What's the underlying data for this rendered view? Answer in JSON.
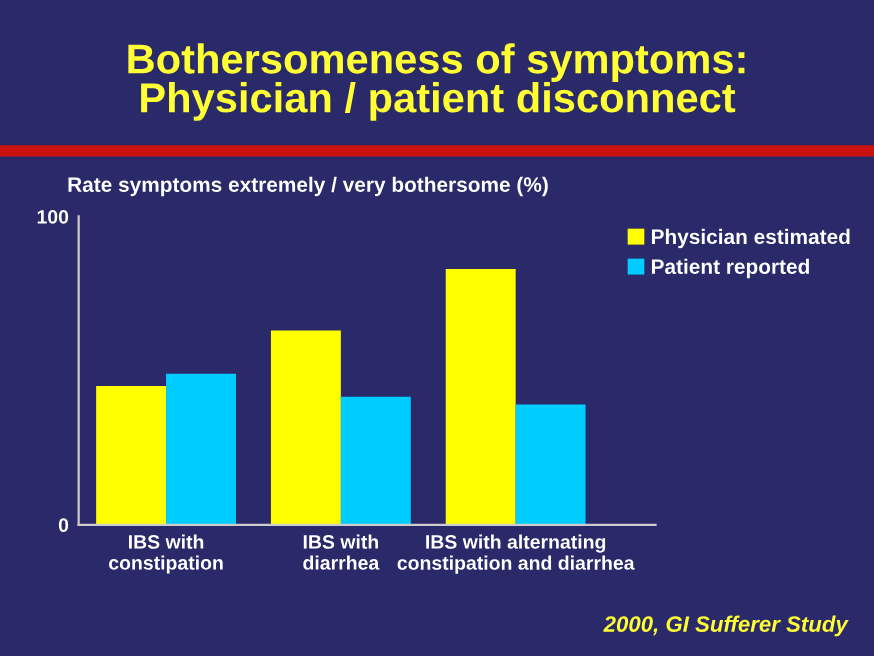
{
  "chart_data": {
    "type": "bar",
    "title": "Bothersomeness of symptoms:\nPhysician / patient disconnect",
    "ylabel": "Rate symptoms extremely / very bothersome (%)",
    "categories": [
      "IBS with\nconstipation",
      "IBS with\ndiarrhea",
      "IBS with alternating\nconstipation and diarrhea"
    ],
    "series": [
      {
        "name": "Physician estimated",
        "color": "#ffff00",
        "values": [
          45,
          63,
          83
        ]
      },
      {
        "name": "Patient reported",
        "color": "#00ccff",
        "values": [
          49,
          41.5,
          39
        ]
      }
    ],
    "ylim": [
      0,
      100
    ],
    "yticks": [
      0,
      100
    ],
    "grid": false,
    "legend": "top right",
    "annotations": [
      "2000, GI Sufferer Study"
    ]
  }
}
